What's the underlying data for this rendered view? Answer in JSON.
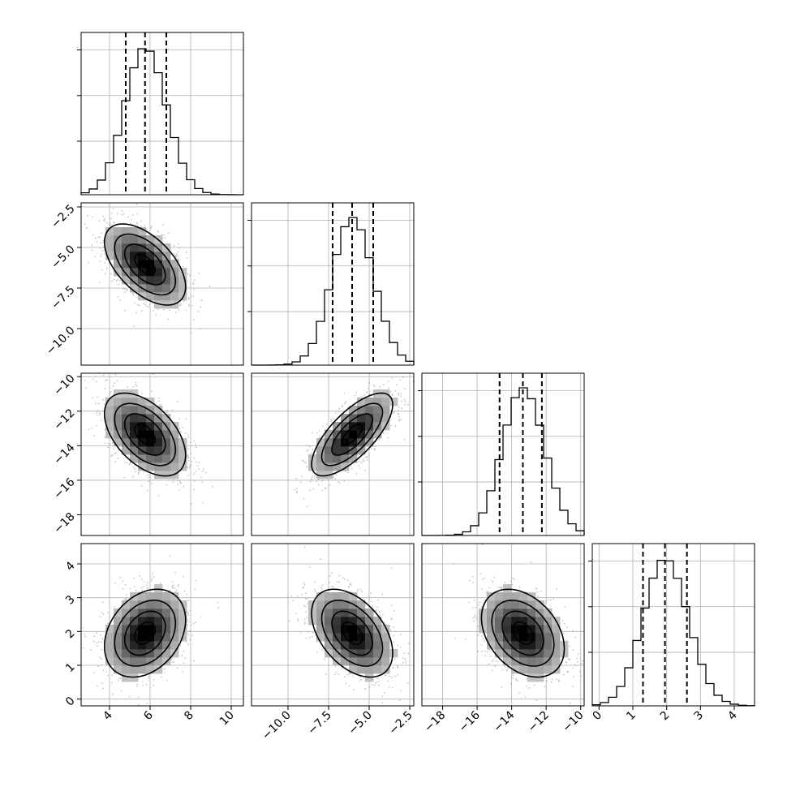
{
  "chart_data": {
    "type": "corner",
    "grid": true,
    "parameters": [
      {
        "range": [
          2.6,
          10.6
        ],
        "ticks": [
          4,
          6,
          8,
          10
        ],
        "tick_labels": [
          "4",
          "6",
          "8",
          "10"
        ],
        "quantiles": [
          4.8,
          5.75,
          6.8
        ],
        "mean": 5.75,
        "sd": 1.0,
        "hist_peak_fraction": 0.91
      },
      {
        "range": [
          -12.25,
          -2.25
        ],
        "ticks": [
          -10.0,
          -7.5,
          -5.0,
          -2.5
        ],
        "tick_labels": [
          "−10.0",
          "−7.5",
          "−5.0",
          "−2.5"
        ],
        "quantiles": [
          -7.25,
          -6.05,
          -4.75
        ],
        "mean": -6.05,
        "sd": 1.25,
        "hist_peak_fraction": 0.91
      },
      {
        "range": [
          -19.2,
          -9.8
        ],
        "ticks": [
          -18,
          -16,
          -14,
          -12,
          -10
        ],
        "tick_labels": [
          "−18",
          "−16",
          "−14",
          "−12",
          "−10"
        ],
        "quantiles": [
          -14.7,
          -13.35,
          -12.25
        ],
        "mean": -13.35,
        "sd": 1.2,
        "hist_peak_fraction": 0.91
      },
      {
        "range": [
          -0.2,
          4.6
        ],
        "ticks": [
          0,
          1,
          2,
          3,
          4
        ],
        "tick_labels": [
          "0",
          "1",
          "2",
          "3",
          "4"
        ],
        "quantiles": [
          1.3,
          1.95,
          2.6
        ],
        "mean": 1.95,
        "sd": 0.65,
        "hist_peak_fraction": 0.91
      }
    ],
    "correlations": [
      {
        "i": 1,
        "j": 0,
        "rho": -0.55
      },
      {
        "i": 2,
        "j": 0,
        "rho": -0.5
      },
      {
        "i": 2,
        "j": 1,
        "rho": 0.72
      },
      {
        "i": 3,
        "j": 0,
        "rho": 0.3
      },
      {
        "i": 3,
        "j": 1,
        "rho": -0.45
      },
      {
        "i": 3,
        "j": 2,
        "rho": -0.35
      }
    ],
    "contour_levels_sigma": [
      0.5,
      1.0,
      1.5,
      2.0
    ],
    "colors": {
      "line": "#000000",
      "points": "#b4b4b4",
      "grid": "#b0b0b0",
      "density_max": "#000000"
    }
  }
}
